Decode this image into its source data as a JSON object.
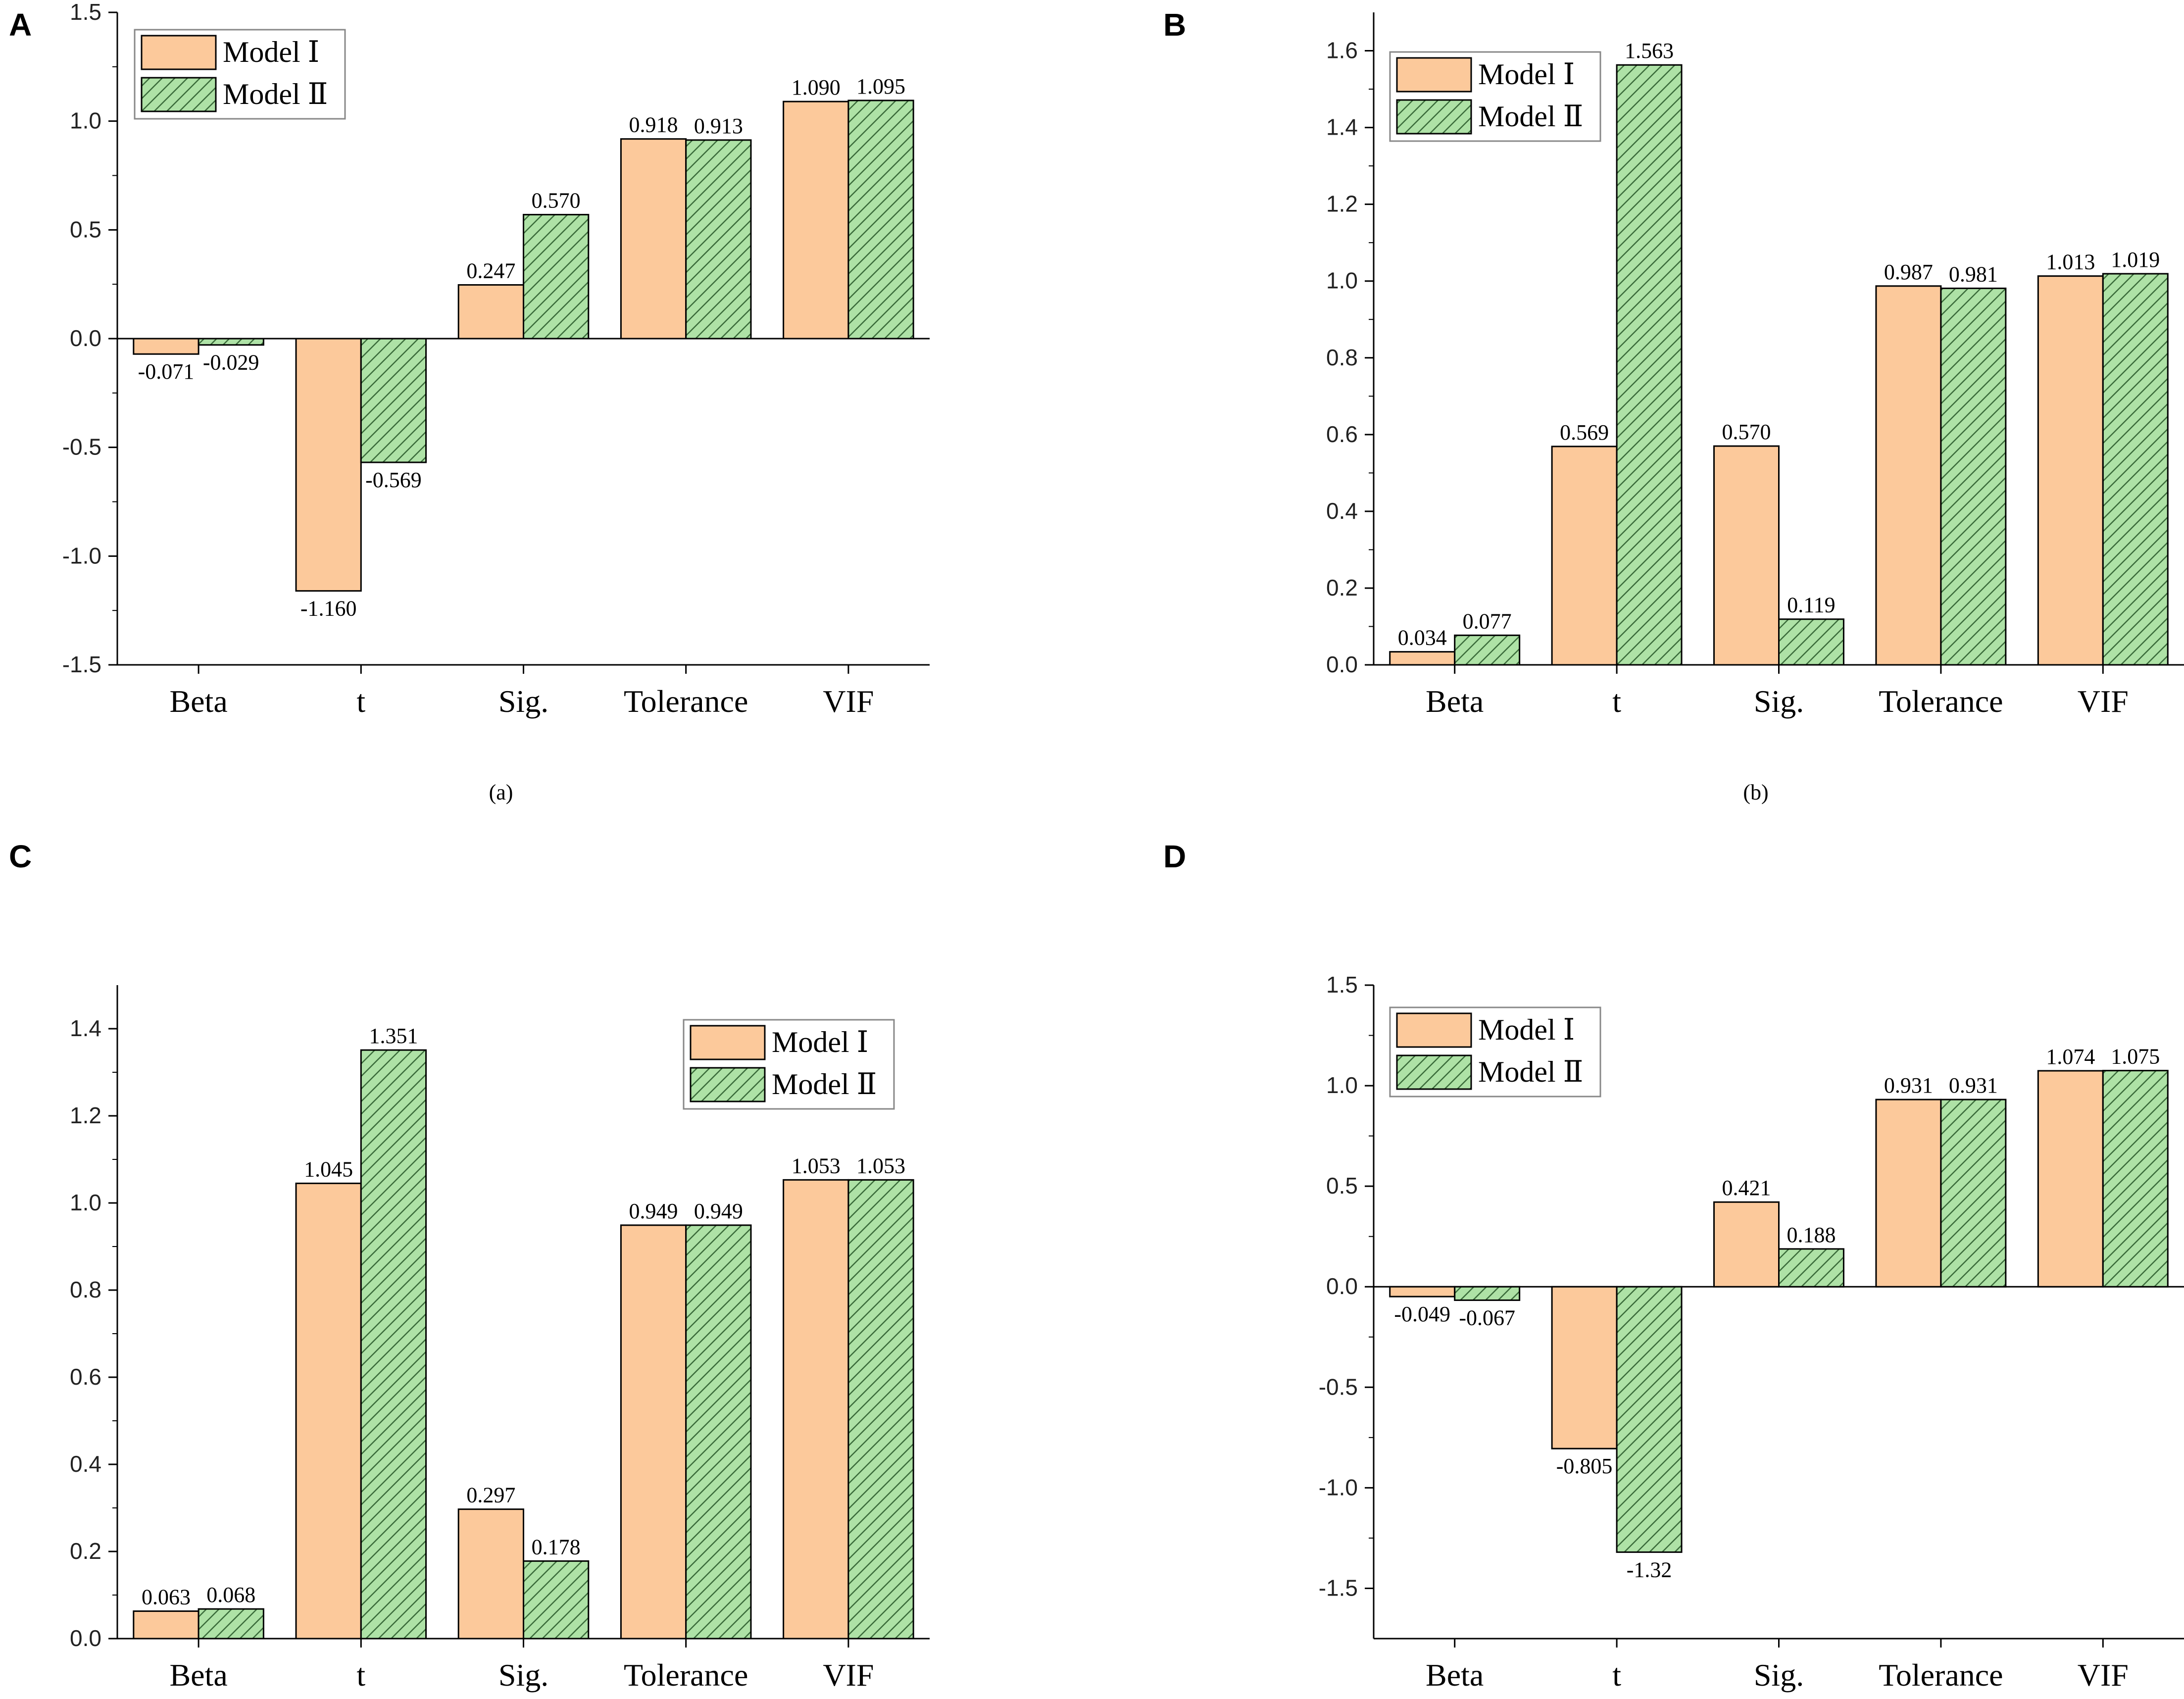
{
  "colors": {
    "model1": "#fcc99b",
    "model2": "#aee2a6",
    "hatch": "#3a6b3a",
    "axis": "#000000"
  },
  "legend": {
    "series": [
      "Model Ⅰ",
      "Model Ⅱ"
    ]
  },
  "chart_data": [
    {
      "panel": "A",
      "caption": "(a)",
      "type": "bar",
      "categories": [
        "Beta",
        "t",
        "Sig.",
        "Tolerance",
        "VIF"
      ],
      "series": [
        {
          "name": "Model Ⅰ",
          "values": [
            -0.071,
            -1.16,
            0.247,
            0.918,
            1.09
          ],
          "labels": [
            "-0.071",
            "-1.160",
            "0.247",
            "0.918",
            "1.090"
          ]
        },
        {
          "name": "Model Ⅱ",
          "values": [
            -0.029,
            -0.569,
            0.57,
            0.913,
            1.095
          ],
          "labels": [
            "-0.029",
            "-0.569",
            "0.570",
            "0.913",
            "1.095"
          ]
        }
      ],
      "ylim": [
        -1.5,
        1.5
      ],
      "yticks": [
        "-1.5",
        "-1.0",
        "-0.5",
        "0.0",
        "0.5",
        "1.0",
        "1.5"
      ],
      "legend_position": "top-left"
    },
    {
      "panel": "B",
      "caption": "(b)",
      "type": "bar",
      "categories": [
        "Beta",
        "t",
        "Sig.",
        "Tolerance",
        "VIF"
      ],
      "series": [
        {
          "name": "Model Ⅰ",
          "values": [
            0.034,
            0.569,
            0.57,
            0.987,
            1.013
          ],
          "labels": [
            "0.034",
            "0.569",
            "0.570",
            "0.987",
            "1.013"
          ]
        },
        {
          "name": "Model Ⅱ",
          "values": [
            0.077,
            1.563,
            0.119,
            0.981,
            1.019
          ],
          "labels": [
            "0.077",
            "1.563",
            "0.119",
            "0.981",
            "1.019"
          ]
        }
      ],
      "ylim": [
        0,
        1.7
      ],
      "yticks": [
        "0.0",
        "0.2",
        "0.4",
        "0.6",
        "0.8",
        "1.0",
        "1.2",
        "1.4",
        "1.6"
      ],
      "legend_position": "top-left"
    },
    {
      "panel": "C",
      "caption": "",
      "type": "bar",
      "categories": [
        "Beta",
        "t",
        "Sig.",
        "Tolerance",
        "VIF"
      ],
      "series": [
        {
          "name": "Model Ⅰ",
          "values": [
            0.063,
            1.045,
            0.297,
            0.949,
            1.053
          ],
          "labels": [
            "0.063",
            "1.045",
            "0.297",
            "0.949",
            "1.053"
          ]
        },
        {
          "name": "Model Ⅱ",
          "values": [
            0.068,
            1.351,
            0.178,
            0.949,
            1.053
          ],
          "labels": [
            "0.068",
            "1.351",
            "0.178",
            "0.949",
            "1.053"
          ]
        }
      ],
      "ylim": [
        0,
        1.5
      ],
      "yticks": [
        "0.0",
        "0.2",
        "0.4",
        "0.6",
        "0.8",
        "1.0",
        "1.2",
        "1.4"
      ],
      "legend_position": "top-right"
    },
    {
      "panel": "D",
      "caption": "",
      "type": "bar",
      "categories": [
        "Beta",
        "t",
        "Sig.",
        "Tolerance",
        "VIF"
      ],
      "series": [
        {
          "name": "Model Ⅰ",
          "values": [
            -0.049,
            -0.805,
            0.421,
            0.931,
            1.074
          ],
          "labels": [
            "-0.049",
            "-0.805",
            "0.421",
            "0.931",
            "1.074"
          ]
        },
        {
          "name": "Model Ⅱ",
          "values": [
            -0.067,
            -1.32,
            0.188,
            0.931,
            1.075
          ],
          "labels": [
            "-0.067",
            "-1.32",
            "0.188",
            "0.931",
            "1.075"
          ]
        }
      ],
      "ylim": [
        -1.75,
        1.5
      ],
      "yticks": [
        "-1.5",
        "-1.0",
        "-0.5",
        "0.0",
        "0.5",
        "1.0",
        "1.5"
      ],
      "legend_position": "top-left"
    }
  ]
}
